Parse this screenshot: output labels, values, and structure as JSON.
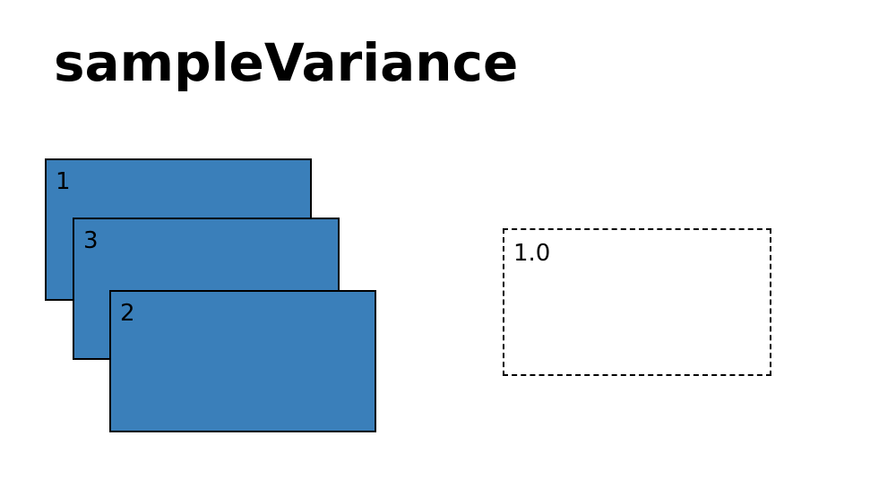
{
  "title": "sampleVariance",
  "stack": {
    "fill_color": "#3a7fba",
    "cards": [
      {
        "label": "1"
      },
      {
        "label": "3"
      },
      {
        "label": "2"
      }
    ]
  },
  "result": {
    "value": "1.0"
  }
}
